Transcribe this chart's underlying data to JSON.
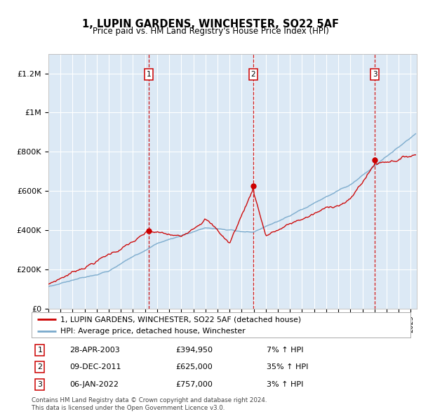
{
  "title": "1, LUPIN GARDENS, WINCHESTER, SO22 5AF",
  "subtitle": "Price paid vs. HM Land Registry's House Price Index (HPI)",
  "xlim_start": 1995.0,
  "xlim_end": 2025.5,
  "ylim_min": 0,
  "ylim_max": 1300000,
  "sale_dates": [
    2003.32,
    2011.94,
    2022.02
  ],
  "sale_prices": [
    394950,
    625000,
    757000
  ],
  "sale_labels": [
    "1",
    "2",
    "3"
  ],
  "sale_info": [
    {
      "num": "1",
      "date": "28-APR-2003",
      "price": "£394,950",
      "hpi": "7% ↑ HPI"
    },
    {
      "num": "2",
      "date": "09-DEC-2011",
      "price": "£625,000",
      "hpi": "35% ↑ HPI"
    },
    {
      "num": "3",
      "date": "06-JAN-2022",
      "price": "£757,000",
      "hpi": "3% ↑ HPI"
    }
  ],
  "legend_line1": "1, LUPIN GARDENS, WINCHESTER, SO22 5AF (detached house)",
  "legend_line2": "HPI: Average price, detached house, Winchester",
  "footer": "Contains HM Land Registry data © Crown copyright and database right 2024.\nThis data is licensed under the Open Government Licence v3.0.",
  "red_color": "#cc0000",
  "blue_color": "#7aaacc",
  "bg_color": "#dce9f5",
  "grid_color": "#ffffff"
}
